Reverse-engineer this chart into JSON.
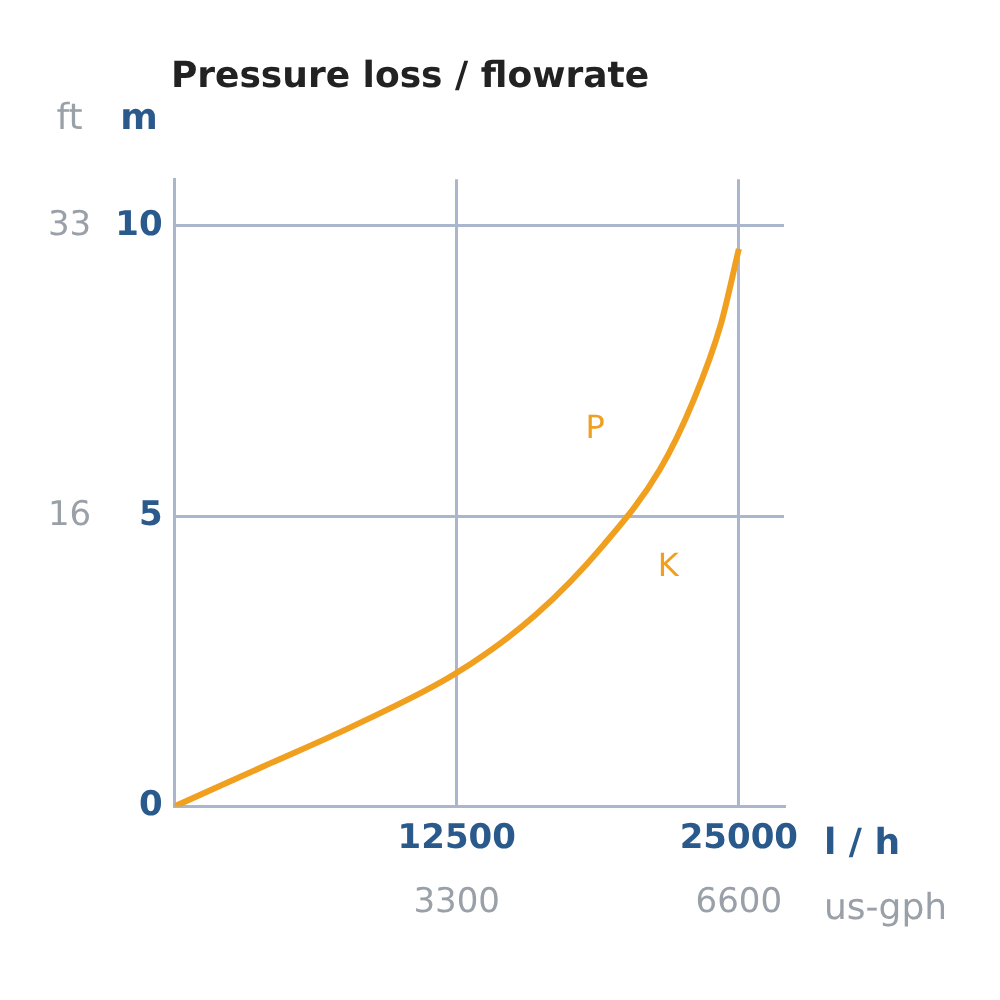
{
  "chart_data": {
    "type": "line",
    "title": "Pressure loss / flowrate",
    "xlabel": "l / h",
    "x2label": "us-gph",
    "ylabel": "m",
    "y2label": "ft",
    "x": [
      0,
      4000,
      8000,
      12500,
      16000,
      19000,
      21500,
      23000,
      24200,
      25000
    ],
    "series": [
      {
        "color": "#f0a01e",
        "values": [
          0,
          0.7,
          1.4,
          2.3,
          3.3,
          4.5,
          5.8,
          7,
          8.3,
          9.6
        ]
      }
    ],
    "xlim": [
      0,
      27000
    ],
    "xticks": [
      12500,
      25000
    ],
    "x2lim": [
      0,
      7128
    ],
    "x2ticks": [
      3300,
      6600
    ],
    "ylim": [
      0,
      10.8
    ],
    "yticks": [
      0,
      5,
      10
    ],
    "y2lim": [
      0,
      35.43
    ],
    "y2ticks": [
      {
        "value": 16.4,
        "label": "16"
      },
      {
        "value": 32.8,
        "label": "33"
      }
    ],
    "annotations": [
      "P",
      "K"
    ],
    "grid": true,
    "marker": "none"
  }
}
